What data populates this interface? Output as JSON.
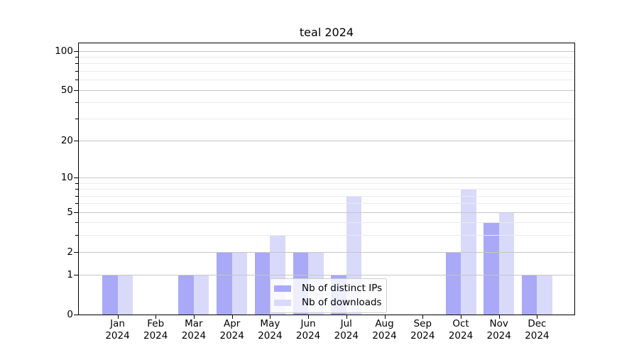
{
  "figure": {
    "title": "teal 2024",
    "background": "#ffffff"
  },
  "chart_data": {
    "type": "bar",
    "title": "teal 2024",
    "categories": [
      "Jan 2024",
      "Feb 2024",
      "Mar 2024",
      "Apr 2024",
      "May 2024",
      "Jun 2024",
      "Jul 2024",
      "Aug 2024",
      "Sep 2024",
      "Oct 2024",
      "Nov 2024",
      "Dec 2024"
    ],
    "x_tick_month_line": [
      "Jan",
      "Feb",
      "Mar",
      "Apr",
      "May",
      "Jun",
      "Jul",
      "Aug",
      "Sep",
      "Oct",
      "Nov",
      "Dec"
    ],
    "x_tick_year_line": "2024",
    "series": [
      {
        "name": "Nb of distinct IPs",
        "color": "#a9a9f7",
        "values": [
          1,
          0,
          1,
          2,
          2,
          2,
          1,
          0,
          0,
          2,
          4,
          1
        ]
      },
      {
        "name": "Nb of downloads",
        "color": "#d9d9fa",
        "values": [
          1,
          0,
          1,
          2,
          3,
          2,
          7,
          0,
          0,
          8,
          5,
          1
        ]
      }
    ],
    "xlabel": "",
    "ylabel": "",
    "y_scale": "log1p",
    "ylim": [
      0,
      114
    ],
    "y_major_ticks": [
      0,
      1,
      2,
      5,
      10,
      20,
      50,
      100
    ],
    "y_minor_ticks": [
      3,
      4,
      6,
      7,
      8,
      9,
      30,
      40,
      60,
      70,
      80,
      90
    ],
    "grid": true,
    "grid_over_bars": true,
    "legend_position": "lower center",
    "colors": {
      "major_grid": "#c6c6c6",
      "minor_grid": "#ebebeb",
      "axis": "#000000",
      "text": "#000000"
    }
  },
  "legend": {
    "items": [
      {
        "label": "Nb of distinct IPs",
        "color": "#a9a9f7"
      },
      {
        "label": "Nb of downloads",
        "color": "#d9d9fa"
      }
    ]
  }
}
